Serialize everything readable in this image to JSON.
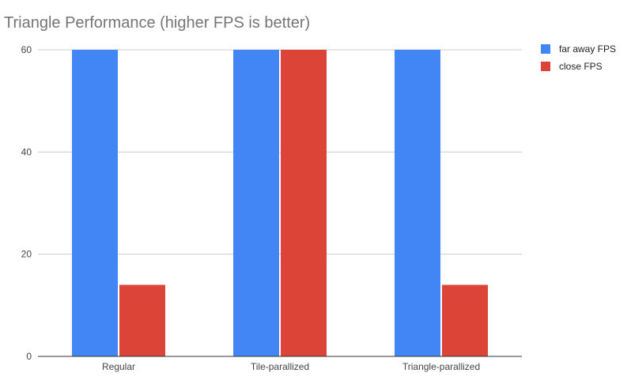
{
  "chart_data": {
    "type": "bar",
    "title": "Triangle Performance (higher FPS is better)",
    "xlabel": "",
    "ylabel": "",
    "categories": [
      "Regular",
      "Tile-parallized",
      "Triangle-parallized"
    ],
    "series": [
      {
        "name": "far away FPS",
        "values": [
          60,
          60,
          60
        ],
        "color": "#4285f4"
      },
      {
        "name": "close FPS",
        "values": [
          14,
          60,
          14
        ],
        "color": "#db4437"
      }
    ],
    "ylim": [
      0,
      60
    ],
    "yticks": [
      "0",
      "20",
      "40",
      "60"
    ],
    "grid": true,
    "legend_position": "right"
  }
}
